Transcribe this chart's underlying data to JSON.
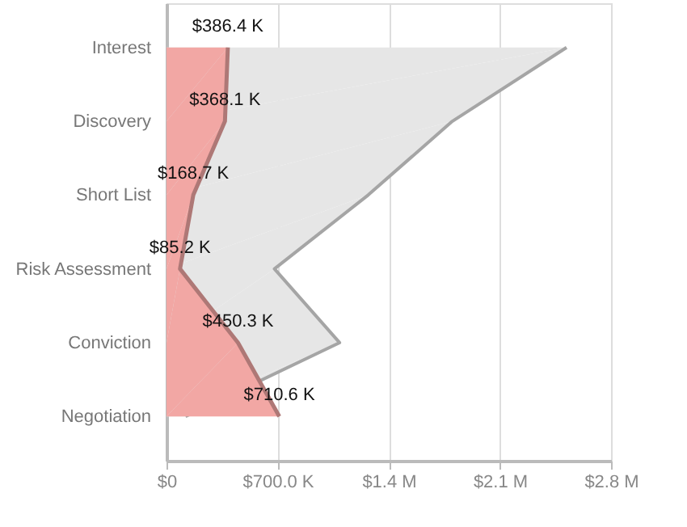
{
  "chart_data": {
    "type": "area",
    "orientation": "horizontal",
    "categories": [
      "Interest",
      "Discovery",
      "Short List",
      "Risk Assessment",
      "Conviction",
      "Negotiation"
    ],
    "series": [
      {
        "color": "#e6e6e6",
        "values": [
          2520000,
          1800000,
          1270000,
          680000,
          1090000,
          120000
        ]
      },
      {
        "color": "#f2a7a4",
        "values": [
          386400,
          368100,
          168700,
          85200,
          450300,
          710600
        ],
        "value_labels": [
          "$386.4 K",
          "$368.1 K",
          "$168.7 K",
          "$85.2 K",
          "$450.3 K",
          "$710.6 K"
        ]
      }
    ],
    "xlim": [
      0,
      2800000
    ],
    "xticks": [
      {
        "value": 0,
        "label": "$0"
      },
      {
        "value": 700000,
        "label": "$700.0 K"
      },
      {
        "value": 1400000,
        "label": "$1.4 M"
      },
      {
        "value": 2100000,
        "label": "$2.1 M"
      },
      {
        "value": 2800000,
        "label": "$2.8 M"
      }
    ],
    "grid": "x"
  }
}
